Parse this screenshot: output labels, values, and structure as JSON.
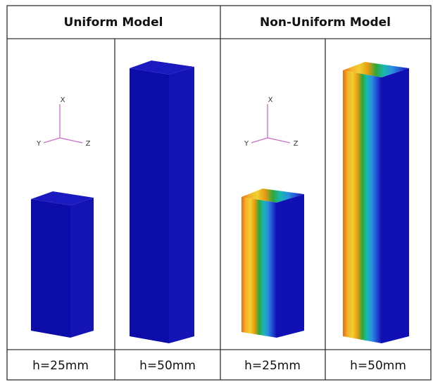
{
  "table": {
    "header": [
      "Uniform Model",
      "Non-Uniform Model"
    ],
    "footer": [
      "h=25mm",
      "h=50mm",
      "h=25mm",
      "h=50mm"
    ]
  },
  "axes": {
    "x": "X",
    "y": "Y",
    "z": "Z"
  }
}
